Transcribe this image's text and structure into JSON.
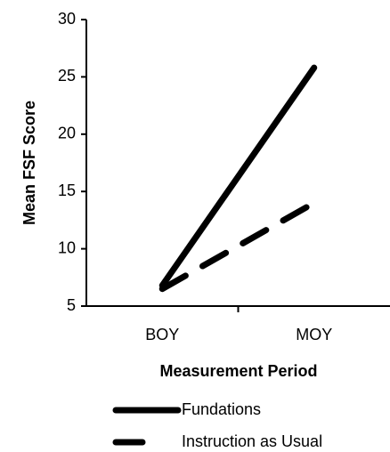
{
  "chart_data": {
    "type": "line",
    "categories": [
      "BOY",
      "MOY"
    ],
    "series": [
      {
        "name": "Fundations",
        "color": "#000000",
        "dash": "solid",
        "values": [
          6.8,
          25.8
        ]
      },
      {
        "name": "Instruction as Usual",
        "color": "#000000",
        "dash": "dashed",
        "values": [
          6.5,
          14
        ]
      }
    ],
    "x_label": "Measurement Period",
    "y_label": "Mean FSF Score",
    "ylim": [
      5,
      30
    ],
    "yticks": [
      5,
      10,
      15,
      20,
      25,
      30
    ],
    "grid": false,
    "legend": "bottom"
  }
}
